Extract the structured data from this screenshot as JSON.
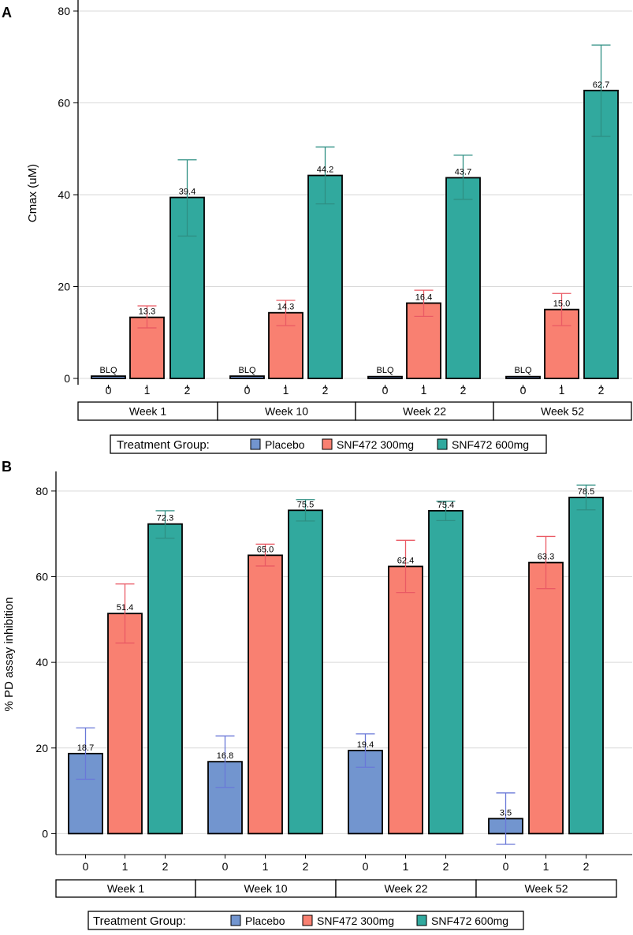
{
  "colors": {
    "placebo": "#7295CF",
    "snf300": "#F98071",
    "snf600": "#31A99E",
    "placebo_err": "#6A78D8",
    "snf300_err": "#EA5A64",
    "snf600_err": "#2E8F83"
  },
  "chart_data": [
    {
      "panel_label": "A",
      "type": "bar",
      "ylabel": "Cmax (uM)",
      "ylim": [
        0,
        80
      ],
      "yticks": [
        "0",
        "20",
        "40",
        "60",
        "80"
      ],
      "grid": true,
      "categories": [
        "Week  1",
        "Week 10",
        "Week 22",
        "Week 52"
      ],
      "group_ticks": [
        "0",
        "1",
        "2"
      ],
      "legend_title": "Treatment Group:",
      "series": [
        {
          "name": "Placebo",
          "color_key": "placebo",
          "values": [
            0.5,
            0.5,
            0.4,
            0.4
          ],
          "labels": [
            "BLQ",
            "BLQ",
            "BLQ",
            "BLQ"
          ],
          "err_low": [
            null,
            null,
            null,
            null
          ],
          "err_high": [
            null,
            null,
            null,
            null
          ]
        },
        {
          "name": "SNF472 300mg",
          "color_key": "snf300",
          "values": [
            13.3,
            14.3,
            16.4,
            15.0
          ],
          "labels": [
            "13.3",
            "14.3",
            "16.4",
            "15.0"
          ],
          "err_low": [
            11.0,
            11.5,
            13.5,
            11.5
          ],
          "err_high": [
            15.8,
            17.0,
            19.2,
            18.5
          ]
        },
        {
          "name": "SNF472 600mg",
          "color_key": "snf600",
          "values": [
            39.4,
            44.2,
            43.7,
            62.7
          ],
          "labels": [
            "39.4",
            "44.2",
            "43.7",
            "62.7"
          ],
          "err_low": [
            31.0,
            38.0,
            39.0,
            52.7
          ],
          "err_high": [
            47.6,
            50.4,
            48.6,
            72.6
          ]
        }
      ]
    },
    {
      "panel_label": "B",
      "type": "bar",
      "ylabel": "% PD assay inhibition",
      "ylim": [
        -2.5,
        82
      ],
      "yticks": [
        "0",
        "20",
        "40",
        "60",
        "80"
      ],
      "grid": true,
      "categories": [
        "Week  1",
        "Week 10",
        "Week 22",
        "Week 52"
      ],
      "group_ticks": [
        "0",
        "1",
        "2"
      ],
      "legend_title": "Treatment Group:",
      "series": [
        {
          "name": "Placebo",
          "color_key": "placebo",
          "values": [
            18.7,
            16.8,
            19.4,
            3.5
          ],
          "labels": [
            "18.7",
            "16.8",
            "19.4",
            "3.5"
          ],
          "err_low": [
            12.7,
            10.8,
            15.5,
            -2.5
          ],
          "err_high": [
            24.7,
            22.8,
            23.3,
            9.5
          ]
        },
        {
          "name": "SNF472 300mg",
          "color_key": "snf300",
          "values": [
            51.4,
            65.0,
            62.4,
            63.3
          ],
          "labels": [
            "51.4",
            "65.0",
            "62.4",
            "63.3"
          ],
          "err_low": [
            44.5,
            62.5,
            56.3,
            57.2
          ],
          "err_high": [
            58.3,
            67.6,
            68.5,
            69.4
          ]
        },
        {
          "name": "SNF472 600mg",
          "color_key": "snf600",
          "values": [
            72.3,
            75.5,
            75.4,
            78.5
          ],
          "labels": [
            "72.3",
            "75.5",
            "75.4",
            "78.5"
          ],
          "err_low": [
            69.0,
            73.0,
            73.1,
            75.6
          ],
          "err_high": [
            75.4,
            78.0,
            77.6,
            81.4
          ]
        }
      ]
    }
  ]
}
